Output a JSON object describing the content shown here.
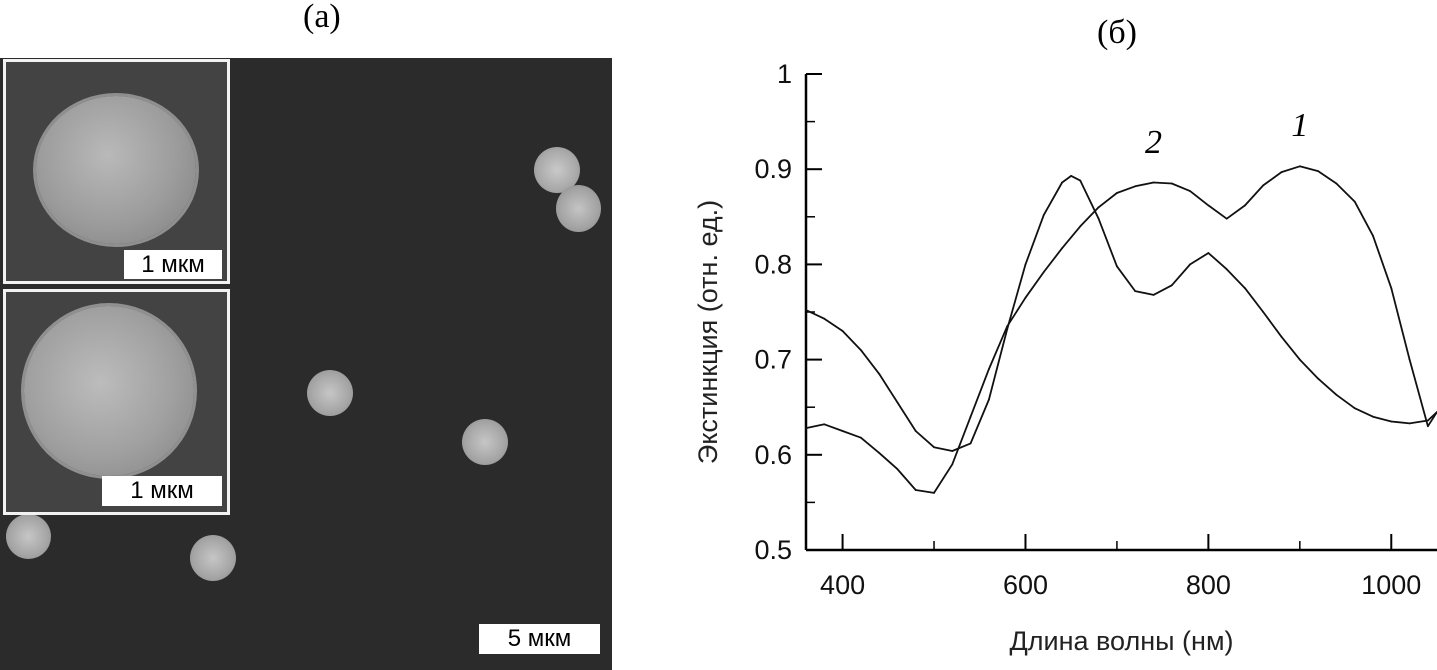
{
  "figure": {
    "panel_a_label": "(а)",
    "panel_b_label": "(б)"
  },
  "micrograph": {
    "inset_1_scale": "1 мкм",
    "inset_2_scale": "1 мкм",
    "main_scale": "5 мкм"
  },
  "chart_data": {
    "type": "line",
    "title": "",
    "xlabel": "Длина волны (нм)",
    "ylabel": "Экстинкция (отн. ед.)",
    "xlim": [
      360,
      1050
    ],
    "ylim": [
      0.5,
      1.0
    ],
    "xticks": [
      400,
      600,
      800,
      1000
    ],
    "yticks": [
      0.5,
      0.6,
      0.7,
      0.8,
      0.9,
      1
    ],
    "ytick_labels": [
      "0.5",
      "0.6",
      "0.7",
      "0.8",
      "0.9",
      "1"
    ],
    "grid": false,
    "legend": "none",
    "series": [
      {
        "name": "1",
        "x": [
          360,
          380,
          400,
          420,
          440,
          460,
          480,
          500,
          520,
          540,
          560,
          580,
          600,
          620,
          640,
          660,
          680,
          700,
          720,
          740,
          760,
          780,
          800,
          820,
          840,
          860,
          880,
          900,
          920,
          940,
          960,
          980,
          1000,
          1020,
          1040,
          1050
        ],
        "y": [
          0.628,
          0.632,
          0.625,
          0.618,
          0.602,
          0.585,
          0.563,
          0.56,
          0.59,
          0.64,
          0.69,
          0.735,
          0.765,
          0.792,
          0.817,
          0.84,
          0.86,
          0.875,
          0.882,
          0.886,
          0.885,
          0.877,
          0.862,
          0.848,
          0.862,
          0.883,
          0.897,
          0.903,
          0.898,
          0.885,
          0.866,
          0.83,
          0.775,
          0.7,
          0.63,
          0.645
        ]
      },
      {
        "name": "2",
        "x": [
          360,
          380,
          400,
          420,
          440,
          460,
          480,
          500,
          520,
          540,
          560,
          580,
          600,
          620,
          640,
          650,
          660,
          680,
          700,
          720,
          740,
          760,
          780,
          800,
          820,
          840,
          860,
          880,
          900,
          920,
          940,
          960,
          980,
          1000,
          1020,
          1040,
          1050
        ],
        "y": [
          0.752,
          0.743,
          0.73,
          0.71,
          0.685,
          0.655,
          0.625,
          0.608,
          0.604,
          0.612,
          0.658,
          0.732,
          0.8,
          0.852,
          0.886,
          0.893,
          0.888,
          0.848,
          0.798,
          0.772,
          0.768,
          0.778,
          0.8,
          0.812,
          0.795,
          0.775,
          0.75,
          0.724,
          0.7,
          0.68,
          0.663,
          0.649,
          0.64,
          0.635,
          0.633,
          0.636,
          0.645
        ]
      }
    ],
    "series_labels": [
      {
        "text": "1",
        "x": 900,
        "y": 0.935
      },
      {
        "text": "2",
        "x": 740,
        "y": 0.917
      }
    ]
  }
}
